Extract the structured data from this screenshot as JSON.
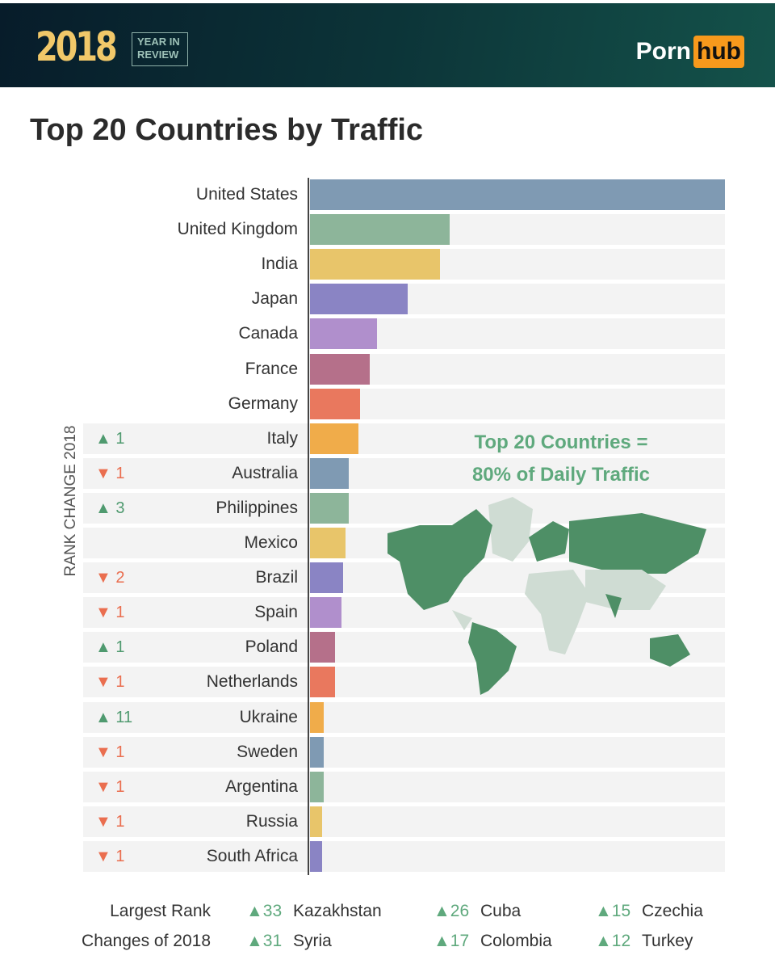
{
  "header": {
    "year": "2018",
    "badge_line1": "YEAR IN",
    "badge_line2": "REVIEW",
    "logo_part1": "Porn",
    "logo_part2": "hub"
  },
  "chart_data": {
    "type": "bar",
    "orientation": "horizontal",
    "title": "Top 20 Countries by Traffic",
    "ylabel": "RANK CHANGE 2018",
    "value_unit": "relative traffic (United States = 100)",
    "categories": [
      "United States",
      "United Kingdom",
      "India",
      "Japan",
      "Canada",
      "France",
      "Germany",
      "Italy",
      "Australia",
      "Philippines",
      "Mexico",
      "Brazil",
      "Spain",
      "Poland",
      "Netherlands",
      "Ukraine",
      "Sweden",
      "Argentina",
      "Russia",
      "South Africa"
    ],
    "values": [
      100,
      33.6,
      31.3,
      23.5,
      16.1,
      14.4,
      12.0,
      11.7,
      9.3,
      9.3,
      8.5,
      8.0,
      7.6,
      6.0,
      6.0,
      3.3,
      3.3,
      3.3,
      2.9,
      2.9
    ],
    "rank_change": [
      null,
      null,
      null,
      null,
      null,
      null,
      null,
      "▲ 1",
      "▼ 1",
      "▲ 3",
      null,
      "▼ 2",
      "▼ 1",
      "▲ 1",
      "▼ 1",
      "▲ 11",
      "▼ 1",
      "▼ 1",
      "▼ 1",
      "▼ 1"
    ],
    "colors": [
      "#7f9ab3",
      "#8db59a",
      "#e8c56a",
      "#8a84c4",
      "#b08fcc",
      "#b5708a",
      "#e9785e",
      "#f0ac4a"
    ],
    "annotation_line1": "Top 20 Countries =",
    "annotation_line2": "80% of Daily Traffic"
  },
  "footer": {
    "label_line1": "Largest Rank",
    "label_line2": "Changes of 2018",
    "items": [
      {
        "change": "▲33",
        "country": "Kazakhstan"
      },
      {
        "change": "▲31",
        "country": "Syria"
      },
      {
        "change": "▲26",
        "country": "Cuba"
      },
      {
        "change": "▲17",
        "country": "Colombia"
      },
      {
        "change": "▲15",
        "country": "Czechia"
      },
      {
        "change": "▲12",
        "country": "Turkey"
      }
    ]
  }
}
